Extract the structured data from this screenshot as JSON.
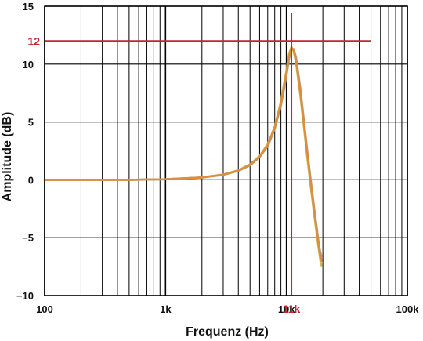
{
  "chart_data": {
    "type": "line",
    "title": "",
    "xlabel": "Frequenz (Hz)",
    "ylabel": "Amplitude (dB)",
    "xscale": "log",
    "xlim": [
      100,
      100000
    ],
    "ylim": [
      -10,
      15
    ],
    "grid": true,
    "x_ticks": [
      {
        "value": 100,
        "label": "100"
      },
      {
        "value": 1000,
        "label": "1k"
      },
      {
        "value": 10000,
        "label": "10k"
      },
      {
        "value": 100000,
        "label": "100k"
      }
    ],
    "y_ticks": [
      {
        "value": 15,
        "label": "15"
      },
      {
        "value": 10,
        "label": "10"
      },
      {
        "value": 5,
        "label": "5"
      },
      {
        "value": 0,
        "label": "0"
      },
      {
        "value": -5,
        "label": "−5"
      },
      {
        "value": -10,
        "label": "−10"
      }
    ],
    "reference_lines": [
      {
        "axis": "y",
        "value": 12,
        "label": "12",
        "color": "#c0262d"
      },
      {
        "axis": "x",
        "value": 11000,
        "label": "11k",
        "color": "#c0262d"
      }
    ],
    "series": [
      {
        "color": "#6f84b8",
        "x": [
          100,
          500,
          1000,
          2000,
          3000,
          4000,
          5000,
          6000,
          7000,
          8000,
          9000,
          10000,
          10500,
          11000,
          11500,
          12000,
          13000,
          14000,
          15000,
          16000,
          17000,
          18000,
          18500,
          19000,
          19500
        ],
        "y": [
          0,
          0,
          0.05,
          0.2,
          0.45,
          0.8,
          1.3,
          2.0,
          3.0,
          4.5,
          6.6,
          9.3,
          10.7,
          11.4,
          11.2,
          10.3,
          7.6,
          4.7,
          1.9,
          -0.6,
          -2.8,
          -4.8,
          -5.8,
          -6.6,
          -7.0
        ]
      },
      {
        "color": "#9a9a9a",
        "x": [
          100,
          500,
          1000,
          2000,
          3000,
          4000,
          5000,
          6000,
          7000,
          8000,
          9000,
          10000,
          10500,
          11000,
          11500,
          12000,
          13000,
          14000,
          15000,
          16000,
          17000,
          18000,
          18500,
          19000,
          19500
        ],
        "y": [
          0,
          0,
          0.05,
          0.2,
          0.43,
          0.78,
          1.25,
          1.95,
          2.9,
          4.4,
          6.4,
          9.0,
          10.4,
          11.3,
          11.3,
          10.6,
          8.0,
          5.0,
          2.2,
          -0.3,
          -2.5,
          -4.5,
          -5.5,
          -6.2,
          -6.6
        ]
      },
      {
        "color": "#cdb034",
        "x": [
          100,
          500,
          1000,
          2000,
          3000,
          4000,
          5000,
          6000,
          7000,
          8000,
          9000,
          10000,
          10500,
          11000,
          11500,
          12000,
          13000,
          14000,
          15000,
          16000,
          17000,
          18000,
          18500,
          19000,
          19500
        ],
        "y": [
          0,
          0,
          0.05,
          0.21,
          0.47,
          0.83,
          1.35,
          2.05,
          3.1,
          4.6,
          6.8,
          9.5,
          10.9,
          11.5,
          11.1,
          10.1,
          7.3,
          4.4,
          1.6,
          -0.9,
          -3.1,
          -5.1,
          -6.0,
          -6.9,
          -7.4
        ]
      },
      {
        "color": "#df8a3e",
        "x": [
          100,
          500,
          1000,
          2000,
          3000,
          4000,
          5000,
          6000,
          7000,
          8000,
          9000,
          10000,
          10500,
          11000,
          11500,
          12000,
          13000,
          14000,
          15000,
          16000,
          17000,
          18000,
          18500,
          19000,
          19500
        ],
        "y": [
          0,
          0,
          0.05,
          0.2,
          0.44,
          0.79,
          1.28,
          1.98,
          2.95,
          4.5,
          6.5,
          9.2,
          10.6,
          11.4,
          11.2,
          10.4,
          7.7,
          4.8,
          2.0,
          -0.5,
          -2.7,
          -4.7,
          -5.7,
          -6.4,
          -6.9
        ]
      }
    ]
  }
}
